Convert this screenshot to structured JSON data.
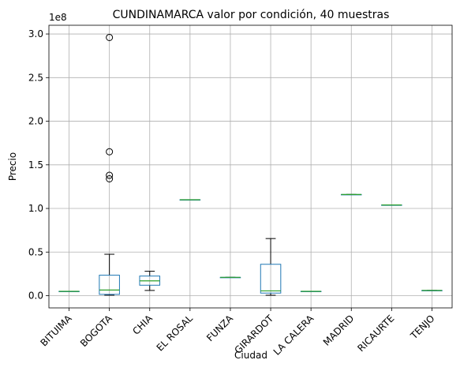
{
  "chart_data": {
    "type": "box",
    "title": "CUNDINAMARCA valor por condición, 40 muestras",
    "xlabel": "Ciudad",
    "ylabel": "Precio",
    "scale_label": "1e8",
    "ylim": [
      -14000000,
      310000000
    ],
    "yticks": [
      0,
      50000000,
      100000000,
      150000000,
      200000000,
      250000000,
      300000000
    ],
    "ytick_labels": [
      "0.0",
      "0.5",
      "1.0",
      "1.5",
      "2.0",
      "2.5",
      "3.0"
    ],
    "grid": true,
    "colors": {
      "box": "#1f77b4",
      "median": "#2ca02c",
      "whisker": "#000000",
      "flier": "#000000",
      "grid": "#b0b0b0"
    },
    "categories": [
      "BITUIMA",
      "BOGOTA",
      "CHIA",
      "EL ROSAL",
      "FUNZA",
      "GIRARDOT",
      "LA CALERA",
      "MADRID",
      "RICAURTE",
      "TENJO"
    ],
    "boxes": [
      {
        "name": "BITUIMA",
        "whislo": 5000000,
        "q1": 5000000,
        "med": 5000000,
        "q3": 5000000,
        "whishi": 5000000,
        "fliers": []
      },
      {
        "name": "BOGOTA",
        "whislo": 600000,
        "q1": 1500000,
        "med": 6500000,
        "q3": 23500000,
        "whishi": 47500000,
        "fliers": [
          296000000,
          165000000,
          138000000,
          134000000
        ]
      },
      {
        "name": "CHIA",
        "whislo": 6000000,
        "q1": 12000000,
        "med": 17000000,
        "q3": 22500000,
        "whishi": 28000000,
        "fliers": []
      },
      {
        "name": "EL ROSAL",
        "whislo": 110000000,
        "q1": 110000000,
        "med": 110000000,
        "q3": 110000000,
        "whishi": 110000000,
        "fliers": []
      },
      {
        "name": "FUNZA",
        "whislo": 21000000,
        "q1": 21000000,
        "med": 21000000,
        "q3": 21000000,
        "whishi": 21000000,
        "fliers": []
      },
      {
        "name": "GIRARDOT",
        "whislo": 500000,
        "q1": 3000000,
        "med": 5500000,
        "q3": 36000000,
        "whishi": 65500000,
        "fliers": []
      },
      {
        "name": "LA CALERA",
        "whislo": 5000000,
        "q1": 5000000,
        "med": 5000000,
        "q3": 5000000,
        "whishi": 5000000,
        "fliers": []
      },
      {
        "name": "MADRID",
        "whislo": 116000000,
        "q1": 116000000,
        "med": 116000000,
        "q3": 116000000,
        "whishi": 116000000,
        "fliers": []
      },
      {
        "name": "RICAURTE",
        "whislo": 104000000,
        "q1": 104000000,
        "med": 104000000,
        "q3": 104000000,
        "whishi": 104000000,
        "fliers": []
      },
      {
        "name": "TENJO",
        "whislo": 6000000,
        "q1": 6000000,
        "med": 6000000,
        "q3": 6000000,
        "whishi": 6000000,
        "fliers": []
      }
    ]
  }
}
